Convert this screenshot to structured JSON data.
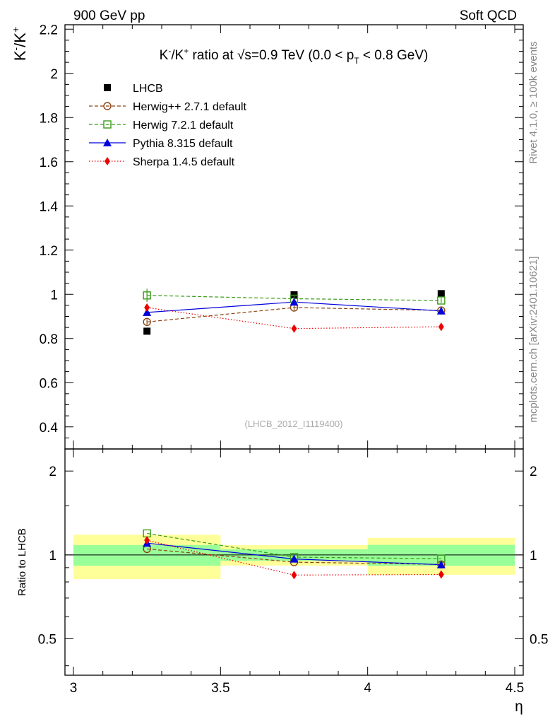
{
  "header": {
    "left": "900 GeV pp",
    "right": "Soft QCD"
  },
  "side_text": {
    "rivet": "Rivet 4.1.0, ≥ 100k events",
    "mcplots": "mcplots.cern.ch [arXiv:2401.10621]"
  },
  "chart_data": {
    "type": "scatter",
    "title": {
      "part1": "K",
      "sup1": "-",
      "part2": "/K",
      "sup2": "+",
      "part3": " ratio at ",
      "sqrt": "√s",
      "part4": "=0.9 TeV (0.0 < p",
      "sub": "T",
      "part5": " < 0.8 GeV)"
    },
    "ylabel": {
      "base1": "K",
      "sup1": "-",
      "base2": "/K",
      "sup2": "+"
    },
    "ratio_ylabel": "Ratio to LHCB",
    "xlabel": "η",
    "analysis_id": "(LHCB_2012_I1119400)",
    "xlim": [
      3.0,
      4.5
    ],
    "ylim": [
      0.3,
      2.22
    ],
    "ratio_ylim": [
      0.37,
      2.4
    ],
    "x_ticks": [
      "3",
      "3.5",
      "4",
      "4.5"
    ],
    "y_ticks": [
      "0.4",
      "0.6",
      "0.8",
      "1",
      "1.2",
      "1.4",
      "1.6",
      "1.8",
      "2",
      "2.2"
    ],
    "ratio_ticks_left": [
      "0.5",
      "1",
      "2"
    ],
    "ratio_ticks_right": [
      "0.5",
      "1",
      "2"
    ],
    "bins": [
      [
        3.0,
        3.5
      ],
      [
        3.5,
        4.0
      ],
      [
        4.0,
        4.5
      ]
    ],
    "x": [
      3.25,
      3.75,
      4.25
    ],
    "data": {
      "name": "LHCB",
      "values": [
        0.833,
        0.998,
        1.003
      ],
      "stat_band": [
        0.071,
        0.047,
        0.087
      ],
      "total_band": [
        0.151,
        0.084,
        0.152
      ]
    },
    "series": [
      {
        "name": "Herwig++ 2.7.1 default",
        "color": "#8b4513",
        "marker": "open-circle",
        "dash": "5,3",
        "values": [
          0.875,
          0.94,
          0.927
        ],
        "errors": [
          0.012,
          0.012,
          0.012
        ]
      },
      {
        "name": "Herwig 7.2.1 default",
        "color": "#3a9a1a",
        "marker": "open-square",
        "dash": "5,3",
        "values": [
          0.995,
          0.98,
          0.972
        ],
        "errors": [
          0.03,
          0.012,
          0.012
        ]
      },
      {
        "name": "Pythia 8.315 default",
        "color": "#0000dd",
        "marker": "triangle",
        "dash": "",
        "values": [
          0.918,
          0.965,
          0.925
        ],
        "errors": [
          0.012,
          0.012,
          0.012
        ]
      },
      {
        "name": "Sherpa 1.4.5 default",
        "color": "#ee0000",
        "marker": "diamond",
        "dash": "1.5,2.5",
        "values": [
          0.94,
          0.845,
          0.853
        ],
        "errors": [
          0.012,
          0.014,
          0.018
        ]
      }
    ],
    "legend_position": "top-left"
  }
}
